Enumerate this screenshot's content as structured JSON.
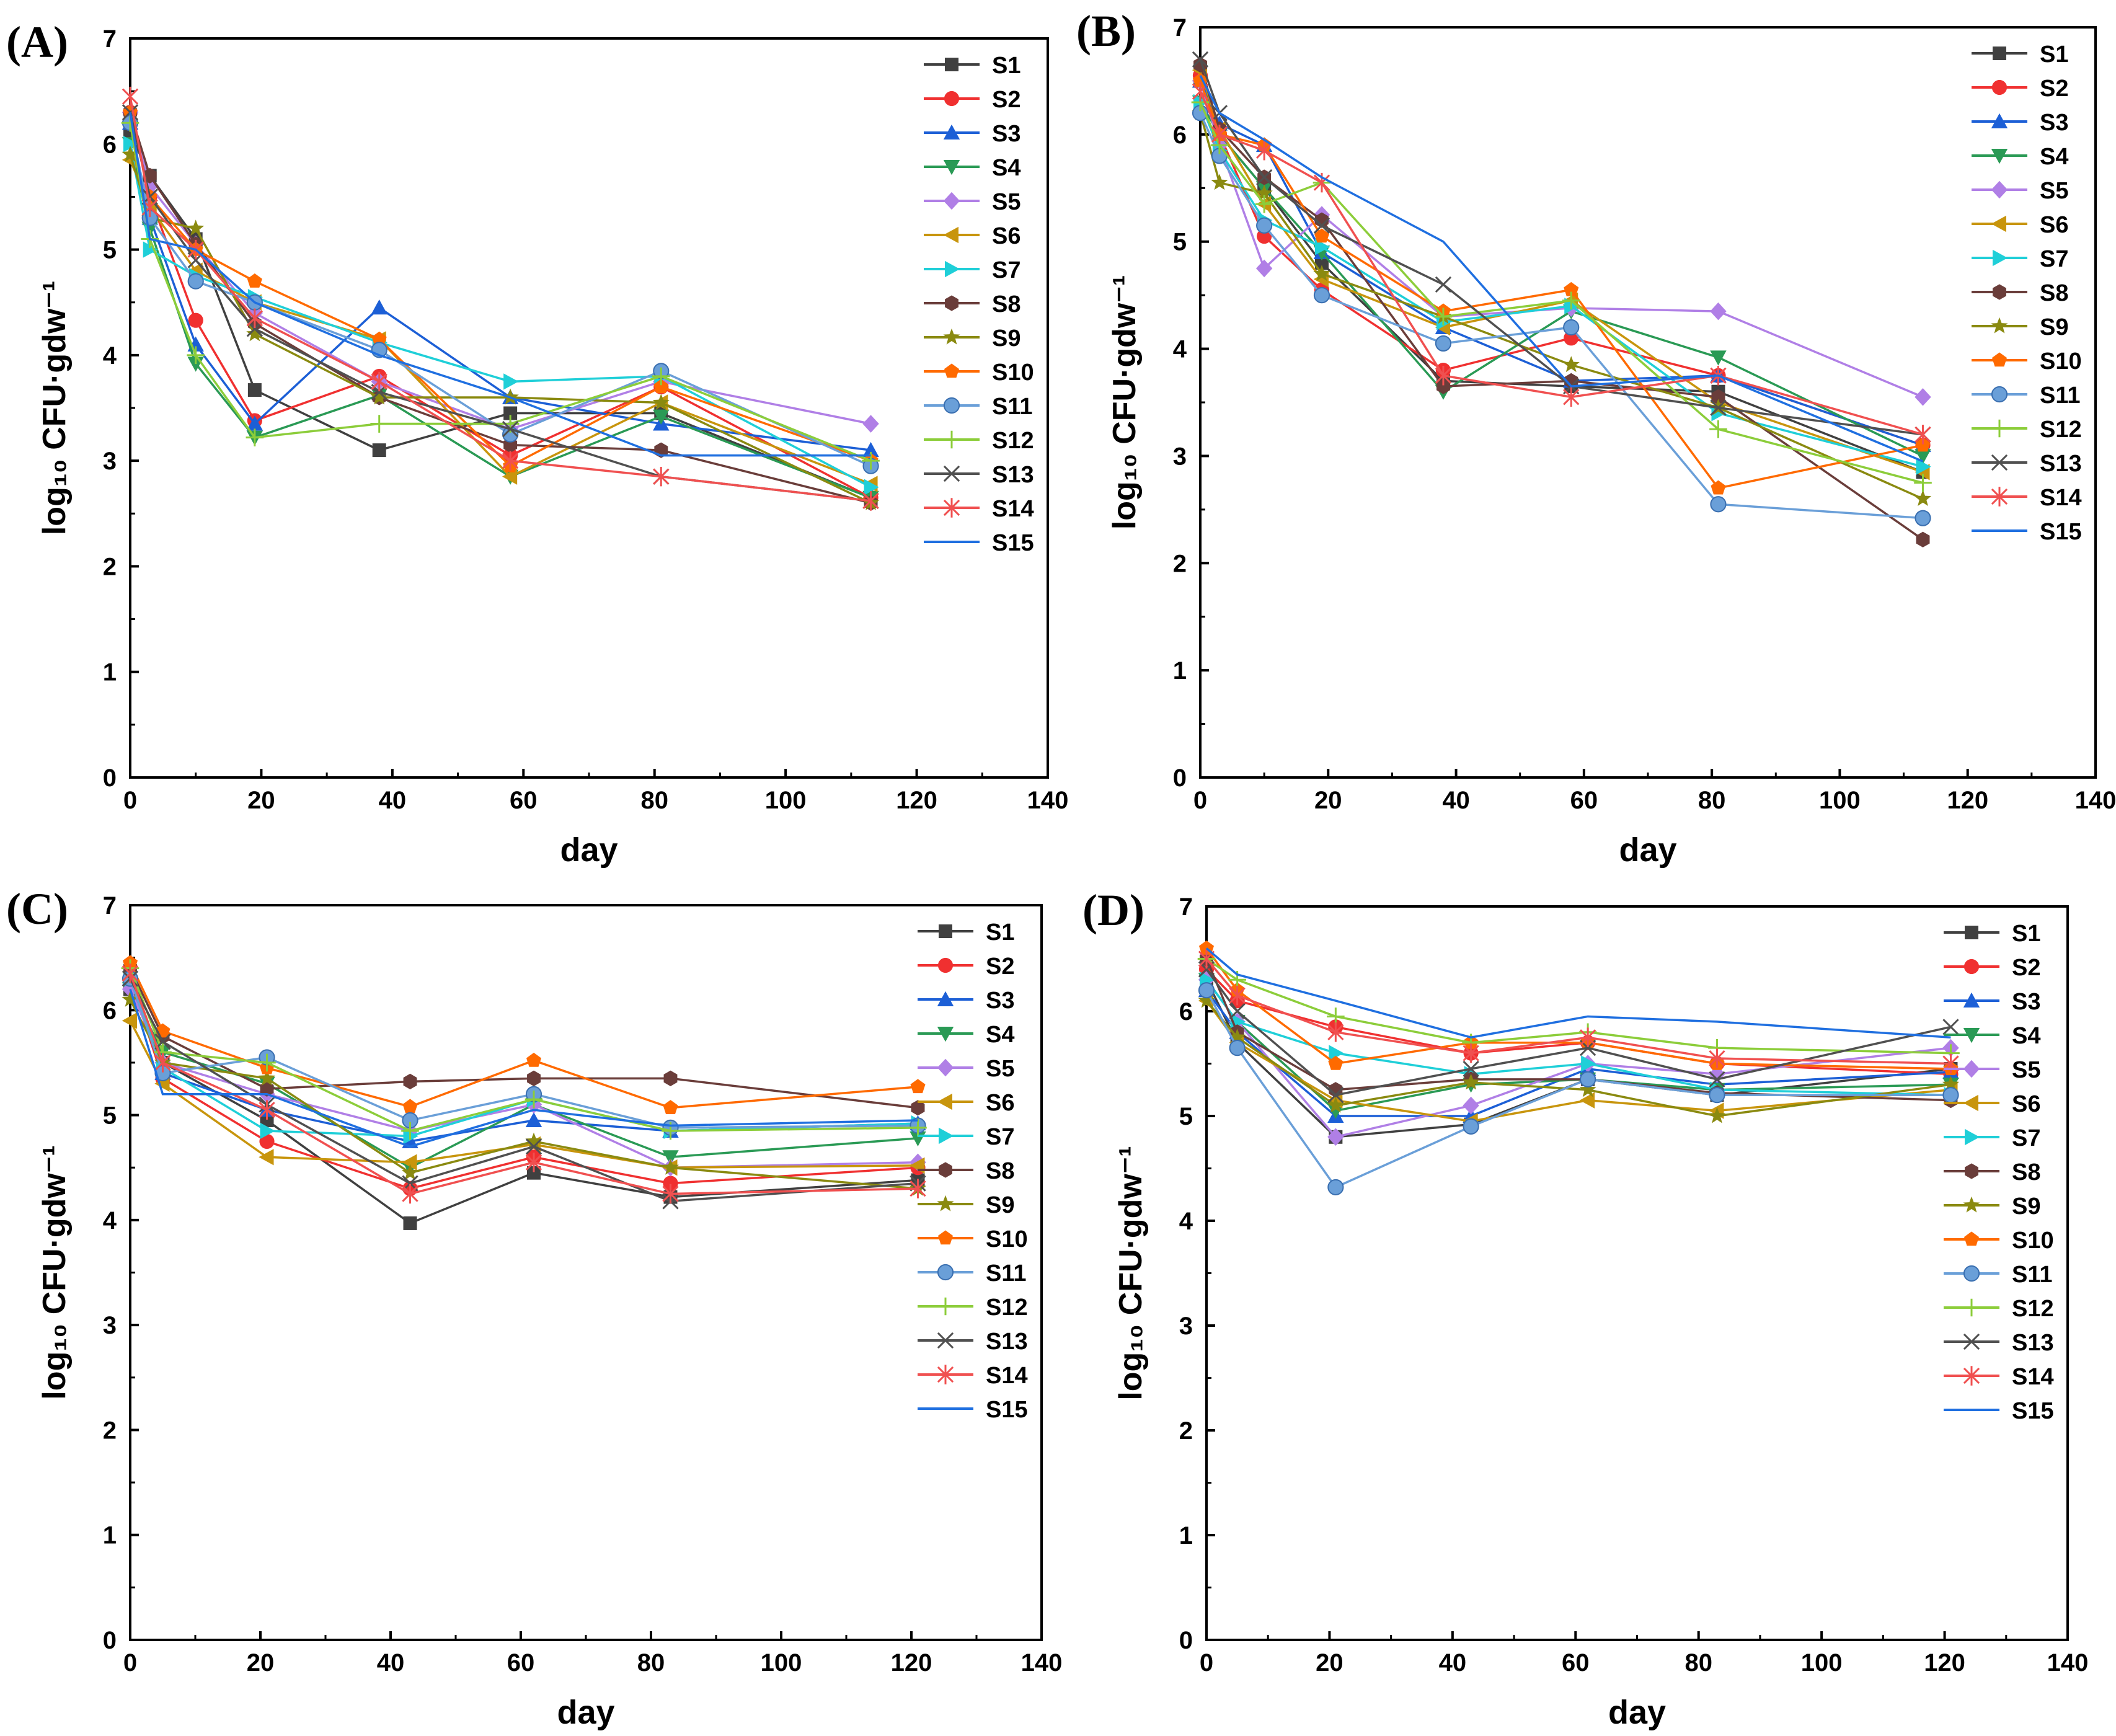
{
  "figure": {
    "series_names": [
      "S1",
      "S2",
      "S3",
      "S4",
      "S5",
      "S6",
      "S7",
      "S8",
      "S9",
      "S10",
      "S11",
      "S12",
      "S13",
      "S14",
      "S15"
    ],
    "series_colors": [
      "#404040",
      "#f03030",
      "#1c5fd6",
      "#2a9a55",
      "#b07fe6",
      "#c8950d",
      "#1fcfd8",
      "#6a3d3a",
      "#8a8a10",
      "#ff6a00",
      "#6a9fd8",
      "#8ccd3a",
      "#505050",
      "#f05050",
      "#1f6fe0"
    ],
    "series_markers": [
      "square",
      "circle",
      "triangle-up",
      "triangle-down",
      "diamond",
      "triangle-left",
      "triangle-right",
      "hexagon",
      "star",
      "pentagon",
      "sphere",
      "plus",
      "x",
      "asterisk",
      "none"
    ]
  },
  "chart_data": [
    {
      "type": "line",
      "panel_label": "(A)",
      "xlabel": "day",
      "ylabel": "log₁₀ CFU·gdw⁻¹",
      "xlim": [
        0,
        140
      ],
      "ylim": [
        0,
        7
      ],
      "xticks": [
        0,
        20,
        40,
        60,
        80,
        100,
        120,
        140
      ],
      "yticks": [
        0,
        1,
        2,
        3,
        4,
        5,
        6,
        7
      ],
      "x": [
        0,
        3,
        10,
        19,
        38,
        58,
        81,
        113
      ],
      "series": [
        {
          "name": "S1",
          "values": [
            6.1,
            5.7,
            5.1,
            3.67,
            3.1,
            3.45,
            3.45,
            2.65
          ]
        },
        {
          "name": "S2",
          "values": [
            6.3,
            5.5,
            4.33,
            3.38,
            3.8,
            3.05,
            3.7,
            2.65
          ]
        },
        {
          "name": "S3",
          "values": [
            6.2,
            5.3,
            4.1,
            3.35,
            4.45,
            3.6,
            3.35,
            3.1
          ]
        },
        {
          "name": "S4",
          "values": [
            6.0,
            5.2,
            3.92,
            3.22,
            3.62,
            2.85,
            3.42,
            2.65
          ]
        },
        {
          "name": "S5",
          "values": [
            6.3,
            5.6,
            5.05,
            4.4,
            3.75,
            3.3,
            3.75,
            3.35
          ]
        },
        {
          "name": "S6",
          "values": [
            5.85,
            5.4,
            4.8,
            4.5,
            4.15,
            2.85,
            3.55,
            2.78
          ]
        },
        {
          "name": "S7",
          "values": [
            6.0,
            5.0,
            4.75,
            4.55,
            4.12,
            3.75,
            3.8,
            2.75
          ]
        },
        {
          "name": "S8",
          "values": [
            6.3,
            5.7,
            5.05,
            4.3,
            3.6,
            3.15,
            3.1,
            2.6
          ]
        },
        {
          "name": "S9",
          "values": [
            5.9,
            5.3,
            5.2,
            4.2,
            3.6,
            3.6,
            3.55,
            2.6
          ]
        },
        {
          "name": "S10",
          "values": [
            6.3,
            5.5,
            5.0,
            4.7,
            4.15,
            2.95,
            3.7,
            3.0
          ]
        },
        {
          "name": "S11",
          "values": [
            6.2,
            5.3,
            4.7,
            4.5,
            4.05,
            3.25,
            3.85,
            2.95
          ]
        },
        {
          "name": "S12",
          "values": [
            6.2,
            5.1,
            4.0,
            3.22,
            3.35,
            3.35,
            3.8,
            3.0
          ]
        },
        {
          "name": "S13",
          "values": [
            6.3,
            5.5,
            4.9,
            4.25,
            3.65,
            3.3,
            2.85,
            2.62
          ]
        },
        {
          "name": "S14",
          "values": [
            6.45,
            5.4,
            5.0,
            4.35,
            3.75,
            3.0,
            2.85,
            2.62
          ]
        },
        {
          "name": "S15",
          "values": [
            6.3,
            5.1,
            5.0,
            4.5,
            4.0,
            3.6,
            3.05,
            3.05
          ]
        }
      ]
    },
    {
      "type": "line",
      "panel_label": "(B)",
      "xlabel": "day",
      "ylabel": "log₁₀ CFU·gdw⁻¹",
      "xlim": [
        0,
        140
      ],
      "ylim": [
        0,
        7
      ],
      "xticks": [
        0,
        20,
        40,
        60,
        80,
        100,
        120,
        140
      ],
      "yticks": [
        0,
        1,
        2,
        3,
        4,
        5,
        6,
        7
      ],
      "x": [
        0,
        3,
        10,
        19,
        38,
        58,
        81,
        113
      ],
      "series": [
        {
          "name": "S1",
          "values": [
            6.5,
            6.0,
            5.5,
            4.8,
            3.7,
            3.65,
            3.6,
            2.85
          ]
        },
        {
          "name": "S2",
          "values": [
            6.55,
            6.0,
            5.05,
            4.55,
            3.8,
            4.1,
            3.75,
            3.1
          ]
        },
        {
          "name": "S3",
          "values": [
            6.5,
            6.1,
            5.9,
            4.9,
            4.2,
            3.7,
            3.75,
            3.1
          ]
        },
        {
          "name": "S4",
          "values": [
            6.3,
            6.0,
            5.5,
            4.9,
            3.6,
            4.35,
            3.92,
            3.0
          ]
        },
        {
          "name": "S5",
          "values": [
            6.5,
            5.9,
            4.75,
            5.25,
            4.3,
            4.38,
            4.35,
            3.55
          ]
        },
        {
          "name": "S6",
          "values": [
            6.6,
            6.05,
            5.35,
            4.65,
            4.2,
            4.45,
            3.5,
            2.85
          ]
        },
        {
          "name": "S7",
          "values": [
            6.3,
            5.85,
            5.2,
            4.95,
            4.25,
            4.4,
            3.4,
            2.9
          ]
        },
        {
          "name": "S8",
          "values": [
            6.65,
            6.05,
            5.6,
            5.2,
            3.65,
            3.7,
            3.55,
            2.22
          ]
        },
        {
          "name": "S9",
          "values": [
            6.2,
            5.55,
            5.45,
            4.7,
            4.3,
            3.85,
            3.45,
            2.6
          ]
        },
        {
          "name": "S10",
          "values": [
            6.5,
            6.0,
            5.9,
            5.05,
            4.35,
            4.55,
            2.7,
            3.1
          ]
        },
        {
          "name": "S11",
          "values": [
            6.2,
            5.8,
            5.15,
            4.5,
            4.05,
            4.2,
            2.55,
            2.42
          ]
        },
        {
          "name": "S12",
          "values": [
            6.3,
            5.9,
            5.35,
            5.55,
            4.3,
            4.45,
            3.25,
            2.75
          ]
        },
        {
          "name": "S13",
          "values": [
            6.7,
            6.2,
            5.6,
            5.15,
            4.6,
            3.65,
            3.45,
            3.2
          ]
        },
        {
          "name": "S14",
          "values": [
            6.4,
            6.0,
            5.85,
            5.55,
            3.75,
            3.55,
            3.75,
            3.2
          ]
        },
        {
          "name": "S15",
          "values": [
            6.55,
            6.2,
            5.95,
            5.6,
            5.0,
            3.65,
            3.75,
            2.95
          ]
        }
      ]
    },
    {
      "type": "line",
      "panel_label": "(C)",
      "xlabel": "day",
      "ylabel": "log₁₀ CFU·gdw⁻¹",
      "xlim": [
        0,
        140
      ],
      "ylim": [
        0,
        7
      ],
      "xticks": [
        0,
        20,
        40,
        60,
        80,
        100,
        120,
        140
      ],
      "yticks": [
        0,
        1,
        2,
        3,
        4,
        5,
        6,
        7
      ],
      "x": [
        0,
        5,
        21,
        43,
        62,
        83,
        121
      ],
      "series": [
        {
          "name": "S1",
          "values": [
            6.2,
            5.5,
            4.95,
            3.97,
            4.45,
            4.22,
            4.38
          ]
        },
        {
          "name": "S2",
          "values": [
            6.3,
            5.35,
            4.75,
            4.3,
            4.6,
            4.35,
            4.5
          ]
        },
        {
          "name": "S3",
          "values": [
            6.3,
            5.4,
            5.05,
            4.75,
            4.95,
            4.85,
            4.92
          ]
        },
        {
          "name": "S4",
          "values": [
            6.2,
            5.6,
            5.3,
            4.5,
            5.1,
            4.6,
            4.78
          ]
        },
        {
          "name": "S5",
          "values": [
            6.2,
            5.5,
            5.2,
            4.85,
            5.1,
            4.5,
            4.55
          ]
        },
        {
          "name": "S6",
          "values": [
            5.9,
            5.3,
            4.6,
            4.55,
            4.72,
            4.5,
            4.52
          ]
        },
        {
          "name": "S7",
          "values": [
            6.3,
            5.45,
            4.85,
            4.8,
            5.15,
            4.85,
            4.92
          ]
        },
        {
          "name": "S8",
          "values": [
            6.4,
            5.75,
            5.25,
            5.32,
            5.35,
            5.35,
            5.07
          ]
        },
        {
          "name": "S9",
          "values": [
            6.1,
            5.5,
            5.35,
            4.45,
            4.75,
            4.5,
            4.3
          ]
        },
        {
          "name": "S10",
          "values": [
            6.45,
            5.8,
            5.45,
            5.08,
            5.52,
            5.07,
            5.27
          ]
        },
        {
          "name": "S11",
          "values": [
            6.3,
            5.4,
            5.55,
            4.95,
            5.2,
            4.88,
            4.9
          ]
        },
        {
          "name": "S12",
          "values": [
            6.4,
            5.6,
            5.5,
            4.85,
            5.15,
            4.85,
            4.88
          ]
        },
        {
          "name": "S13",
          "values": [
            6.3,
            5.7,
            5.1,
            4.35,
            4.7,
            4.18,
            4.35
          ]
        },
        {
          "name": "S14",
          "values": [
            6.35,
            5.5,
            5.05,
            4.25,
            4.55,
            4.25,
            4.3
          ]
        },
        {
          "name": "S15",
          "values": [
            6.2,
            5.2,
            5.2,
            4.7,
            5.05,
            4.9,
            4.95
          ]
        }
      ]
    },
    {
      "type": "line",
      "panel_label": "(D)",
      "xlabel": "day",
      "ylabel": "log₁₀ CFU·gdw⁻¹",
      "xlim": [
        0,
        140
      ],
      "ylim": [
        0,
        7
      ],
      "xticks": [
        0,
        20,
        40,
        60,
        80,
        100,
        120,
        140
      ],
      "yticks": [
        0,
        1,
        2,
        3,
        4,
        5,
        6,
        7
      ],
      "x": [
        0,
        5,
        21,
        43,
        62,
        83,
        121
      ],
      "series": [
        {
          "name": "S1",
          "values": [
            6.3,
            5.7,
            4.8,
            4.92,
            5.35,
            5.2,
            5.45
          ]
        },
        {
          "name": "S2",
          "values": [
            6.4,
            6.1,
            5.85,
            5.6,
            5.7,
            5.5,
            5.4
          ]
        },
        {
          "name": "S3",
          "values": [
            6.2,
            5.8,
            5.0,
            5.0,
            5.45,
            5.3,
            5.42
          ]
        },
        {
          "name": "S4",
          "values": [
            6.3,
            5.9,
            5.05,
            5.3,
            5.35,
            5.25,
            5.3
          ]
        },
        {
          "name": "S5",
          "values": [
            6.3,
            5.9,
            4.8,
            5.1,
            5.5,
            5.4,
            5.65
          ]
        },
        {
          "name": "S6",
          "values": [
            6.1,
            5.7,
            5.15,
            4.95,
            5.15,
            5.05,
            5.25
          ]
        },
        {
          "name": "S7",
          "values": [
            6.3,
            5.9,
            5.6,
            5.4,
            5.5,
            5.25,
            5.2
          ]
        },
        {
          "name": "S8",
          "values": [
            6.5,
            5.8,
            5.25,
            5.35,
            5.35,
            5.22,
            5.15
          ]
        },
        {
          "name": "S9",
          "values": [
            6.1,
            5.75,
            5.1,
            5.32,
            5.25,
            5.0,
            5.3
          ]
        },
        {
          "name": "S10",
          "values": [
            6.6,
            6.2,
            5.5,
            5.7,
            5.7,
            5.5,
            5.45
          ]
        },
        {
          "name": "S11",
          "values": [
            6.2,
            5.65,
            4.32,
            4.9,
            5.35,
            5.2,
            5.2
          ]
        },
        {
          "name": "S12",
          "values": [
            6.5,
            6.3,
            5.95,
            5.7,
            5.8,
            5.65,
            5.6
          ]
        },
        {
          "name": "S13",
          "values": [
            6.4,
            6.0,
            5.2,
            5.45,
            5.65,
            5.35,
            5.85
          ]
        },
        {
          "name": "S14",
          "values": [
            6.5,
            6.15,
            5.8,
            5.6,
            5.75,
            5.55,
            5.5
          ]
        },
        {
          "name": "S15",
          "values": [
            6.6,
            6.35,
            6.1,
            5.75,
            5.95,
            5.9,
            5.75
          ]
        }
      ]
    }
  ]
}
